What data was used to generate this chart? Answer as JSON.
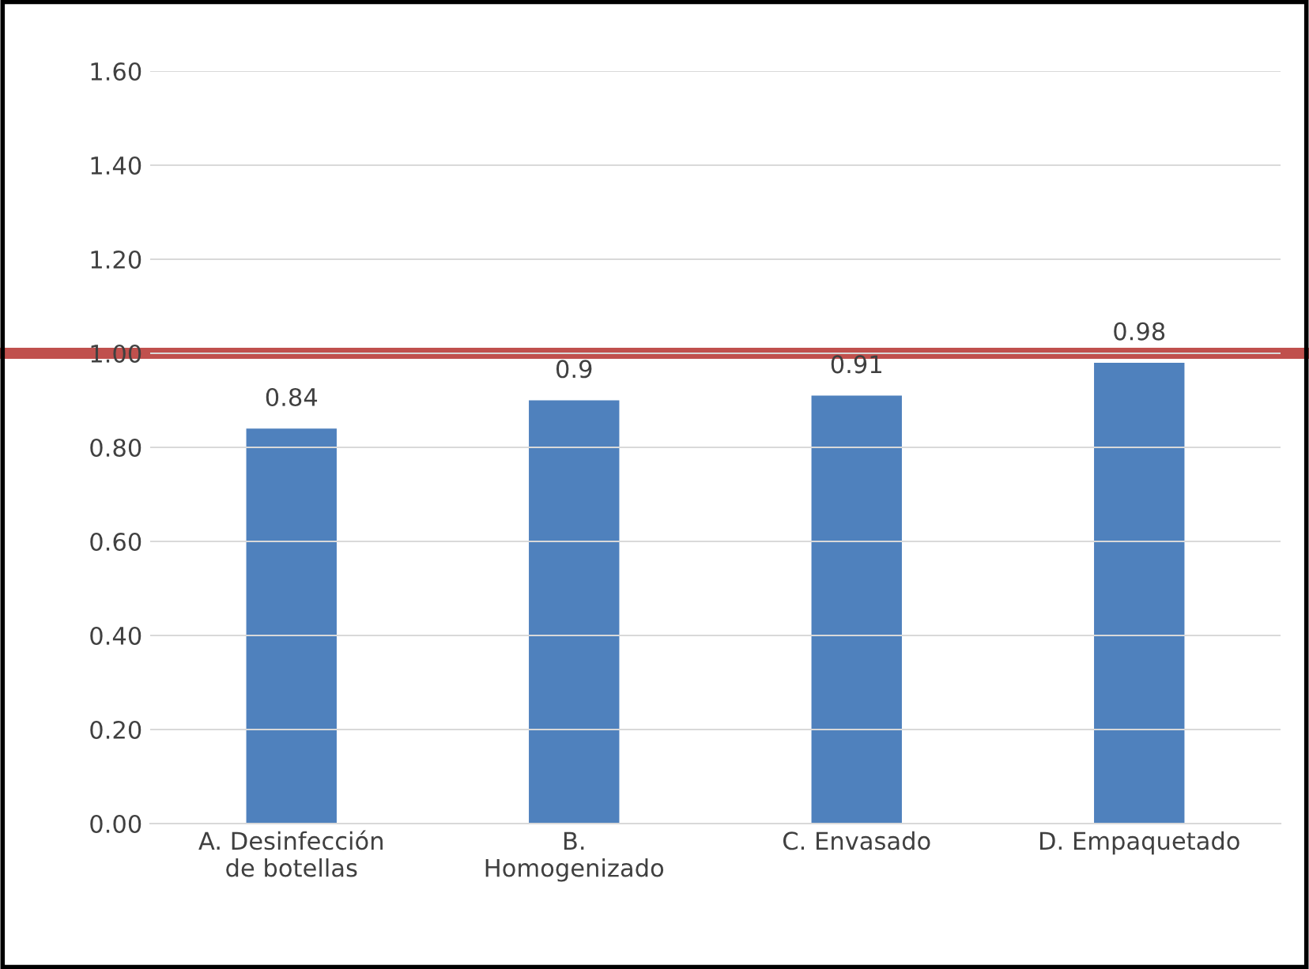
{
  "chart_data": {
    "type": "bar",
    "categories": [
      "A. Desinfección\nde botellas",
      "B.\nHomogenizado",
      "C. Envasado",
      "D. Empaquetado"
    ],
    "values": [
      0.84,
      0.9,
      0.91,
      0.98
    ],
    "color": "#4f81bd",
    "data_labels": true,
    "ylim": [
      0,
      1.6
    ],
    "yticks": [
      {
        "value": 0,
        "label": "0.00"
      },
      {
        "value": 0.2,
        "label": "0.20"
      },
      {
        "value": 0.4,
        "label": "0.40"
      },
      {
        "value": 0.6,
        "label": "0.60"
      },
      {
        "value": 0.8,
        "label": "0.80"
      },
      {
        "value": 1.0,
        "label": "1.00"
      },
      {
        "value": 1.2,
        "label": "1.20"
      },
      {
        "value": 1.4,
        "label": "1.40"
      },
      {
        "value": 1.6,
        "label": "1.60"
      }
    ],
    "grid": "y",
    "ref_lines": [
      {
        "axis": "y",
        "value": 1.0,
        "color": "#c0504d"
      }
    ]
  }
}
